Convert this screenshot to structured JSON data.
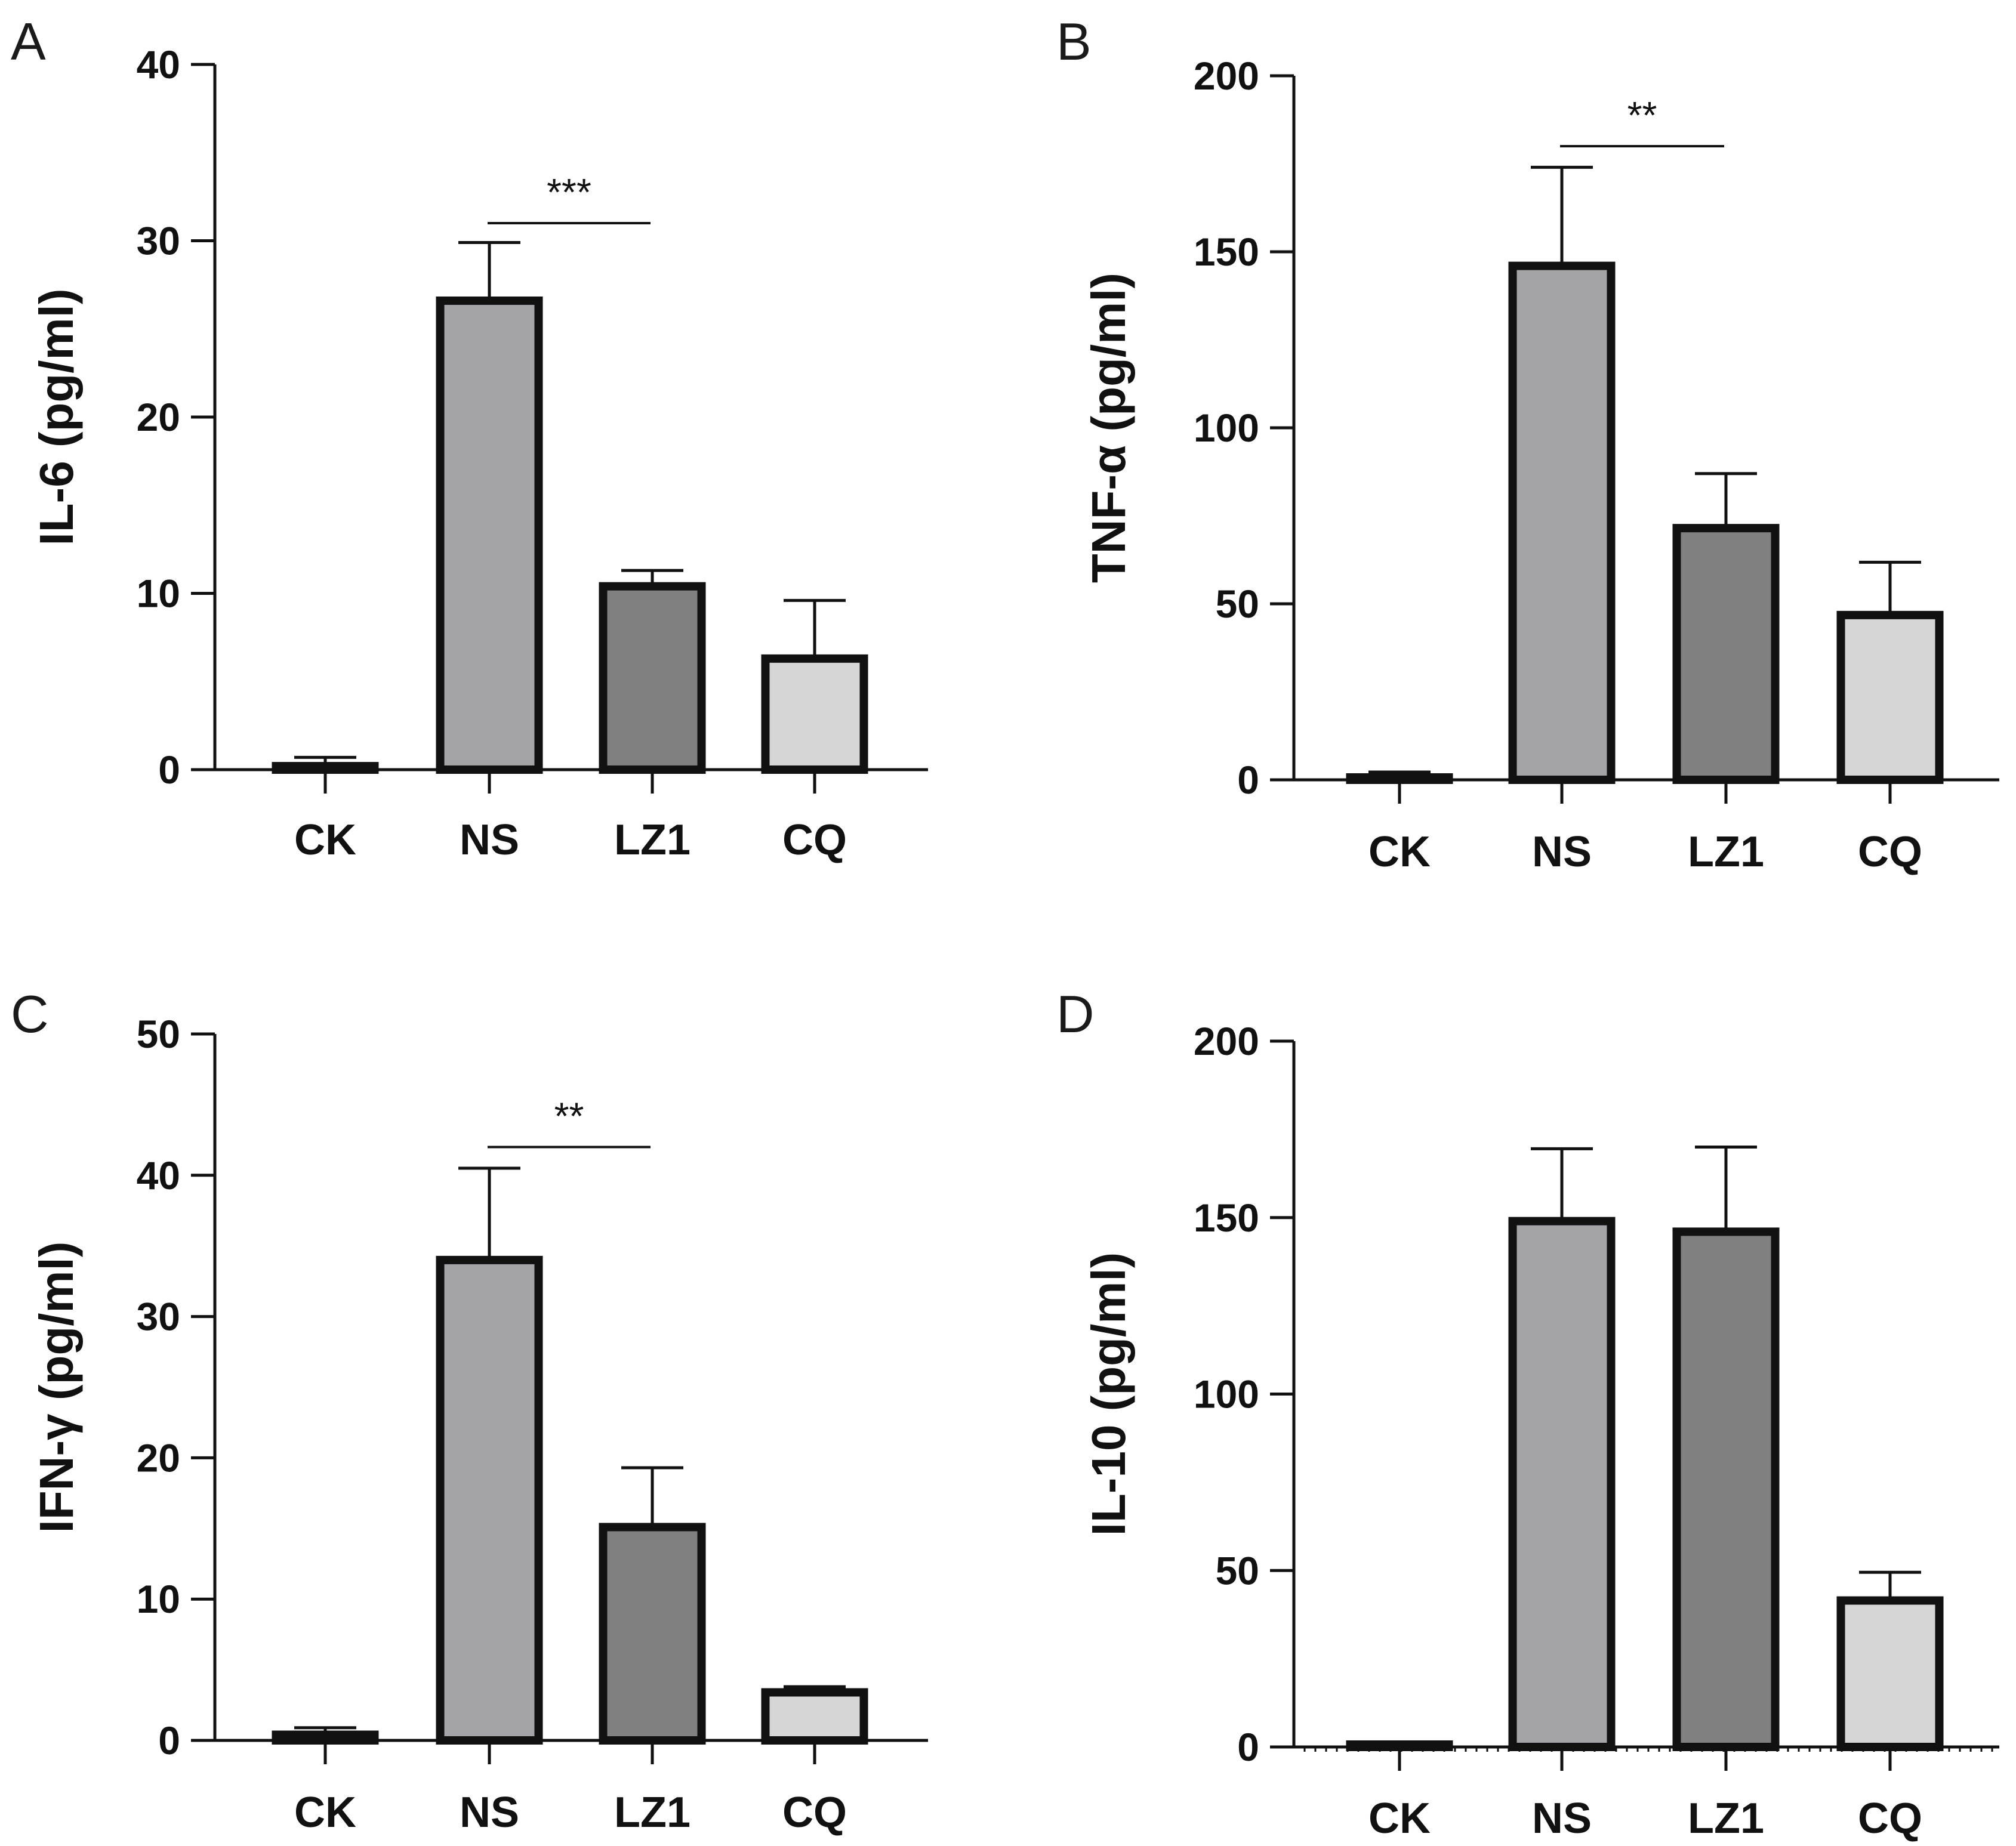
{
  "figure": {
    "panels_count": 4
  },
  "colors": {
    "CK": "#f2f2f2",
    "NS": "#a4a3a8",
    "LZ1": "#808080",
    "CQ": "#d6d6d6",
    "stroke": "#111111"
  },
  "chart_data": [
    {
      "panel": "A",
      "type": "bar",
      "categories": [
        "CK",
        "NS",
        "LZ1",
        "CQ"
      ],
      "values": [
        0.2,
        26.6,
        10.4,
        6.3
      ],
      "errors": [
        0.5,
        3.3,
        0.9,
        3.3
      ],
      "ylabel": "IL-6 (pg/ml)",
      "ylim": [
        0,
        40
      ],
      "yticks": [
        0,
        10,
        20,
        30,
        40
      ],
      "significance": [
        {
          "from": "NS",
          "to": "LZ1",
          "label": "***",
          "y": 31.0
        }
      ],
      "minor_ticks": false
    },
    {
      "panel": "B",
      "type": "bar",
      "categories": [
        "CK",
        "NS",
        "LZ1",
        "CQ"
      ],
      "values": [
        0.3,
        146,
        71.5,
        46.8
      ],
      "errors": [
        1.9,
        28.0,
        15.5,
        15.0
      ],
      "ylabel": "TNF-α (pg/ml)",
      "ylim": [
        0,
        200
      ],
      "yticks": [
        0,
        50,
        100,
        150,
        200
      ],
      "significance": [
        {
          "from": "NS",
          "to": "LZ1",
          "label": "**",
          "y": 180
        }
      ],
      "minor_ticks": false
    },
    {
      "panel": "C",
      "type": "bar",
      "categories": [
        "CK",
        "NS",
        "LZ1",
        "CQ"
      ],
      "values": [
        0.4,
        34.0,
        15.1,
        3.4
      ],
      "errors": [
        0.5,
        6.5,
        4.2,
        0.4
      ],
      "ylabel": "IFN-γ (pg/ml)",
      "ylim": [
        0,
        50
      ],
      "yticks": [
        0,
        10,
        20,
        30,
        40,
        50
      ],
      "significance": [
        {
          "from": "NS",
          "to": "LZ1",
          "label": "**",
          "y": 42.0
        }
      ],
      "minor_ticks": false
    },
    {
      "panel": "D",
      "type": "bar",
      "categories": [
        "CK",
        "NS",
        "LZ1",
        "CQ"
      ],
      "values": [
        0.5,
        149,
        146,
        41.5
      ],
      "errors": [
        0.8,
        20.5,
        24.0,
        8.0
      ],
      "ylabel": "IL-10 (pg/ml)",
      "ylim": [
        0,
        200
      ],
      "yticks": [
        0,
        50,
        100,
        150,
        200
      ],
      "significance": [],
      "minor_ticks": true
    }
  ]
}
